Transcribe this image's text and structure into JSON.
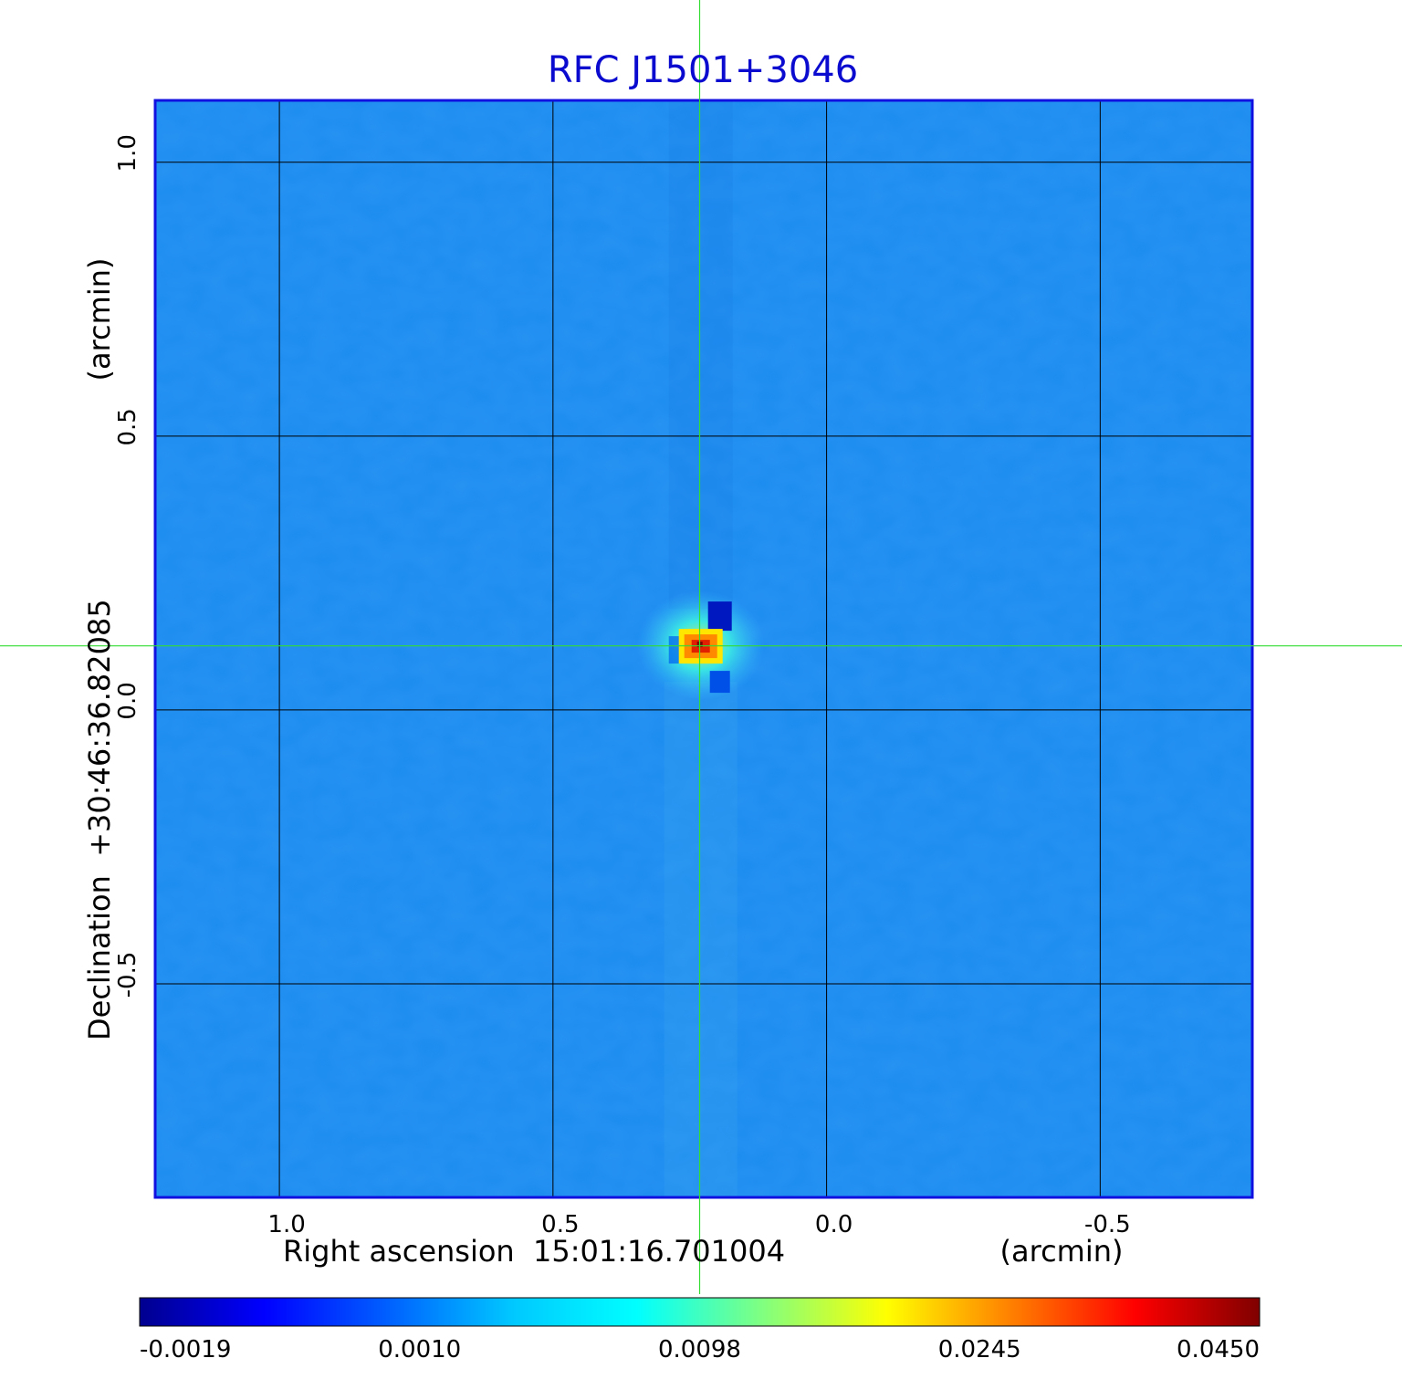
{
  "chart_data": {
    "type": "heatmap",
    "title": "RFC J1501+3046",
    "xlabel": "Right ascension  15:01:16.701004",
    "xlabel_unit": "(arcmin)",
    "ylabel": "Declination  +30:46:36.82085",
    "ylabel_unit": "(arcmin)",
    "xlim": [
      1.227,
      -0.778
    ],
    "ylim": [
      -0.89,
      1.113
    ],
    "x_reversed": true,
    "grid": true,
    "x_ticks": [
      {
        "value": 1.0,
        "label": "1.0"
      },
      {
        "value": 0.5,
        "label": "0.5"
      },
      {
        "value": 0.0,
        "label": "0.0"
      },
      {
        "value": -0.5,
        "label": "-0.5"
      }
    ],
    "y_ticks": [
      {
        "value": 1.0,
        "label": "1.0"
      },
      {
        "value": 0.5,
        "label": "0.5"
      },
      {
        "value": 0.0,
        "label": "0.0"
      },
      {
        "value": -0.5,
        "label": "-0.5"
      }
    ],
    "crosshair": {
      "x": 0.232,
      "y": 0.117,
      "color": "#33dd33"
    },
    "source_peak": {
      "x": 0.23,
      "y": 0.118,
      "value": 0.045
    },
    "colorbar": {
      "tick_labels": [
        "-0.0019",
        "0.0010",
        "0.0098",
        "0.0245",
        "0.0450"
      ],
      "colormap": [
        "#00008f",
        "#0000ff",
        "#0060ff",
        "#00c8ff",
        "#00ffff",
        "#80ff80",
        "#ffff00",
        "#ff8000",
        "#ff0000",
        "#800000"
      ]
    },
    "background_color": "#1c8cf0",
    "title_color": "#0b0bd0",
    "frame_color": "#1010e0"
  }
}
